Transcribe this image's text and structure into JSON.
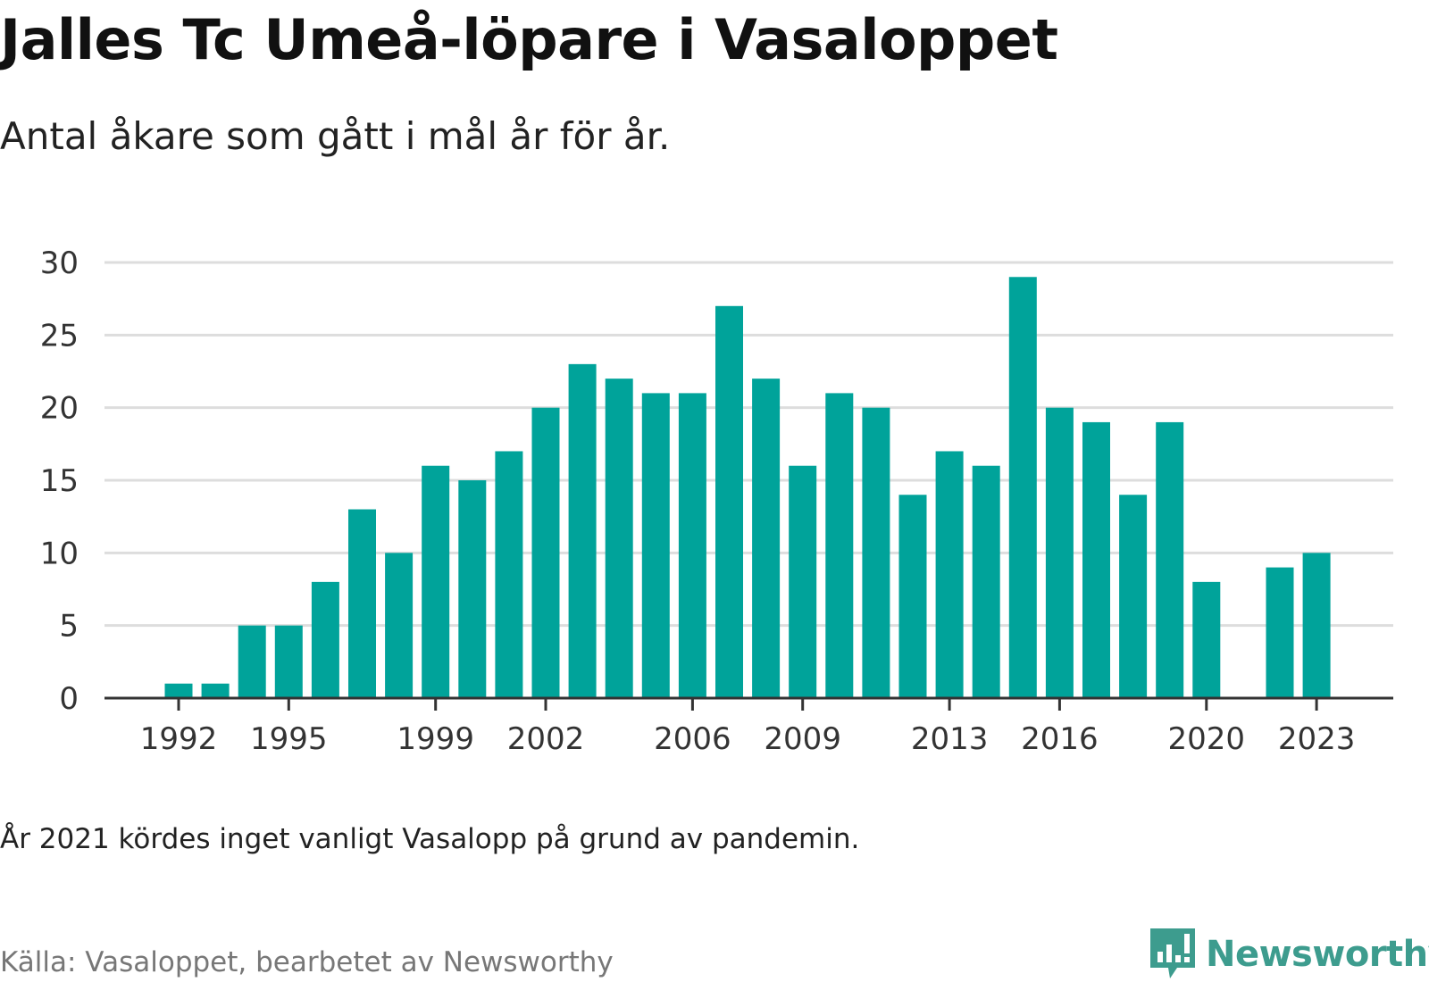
{
  "chart_data": {
    "type": "bar",
    "title": "Jalles Tc Umeå-löpare i Vasaloppet",
    "subtitle": "Antal åkare som gått i mål år för år.",
    "x": [
      1991,
      1992,
      1993,
      1994,
      1995,
      1996,
      1997,
      1998,
      1999,
      2000,
      2001,
      2002,
      2003,
      2004,
      2005,
      2006,
      2007,
      2008,
      2009,
      2010,
      2011,
      2012,
      2013,
      2014,
      2015,
      2016,
      2017,
      2018,
      2019,
      2020,
      2021,
      2022,
      2023
    ],
    "values": [
      0,
      1,
      1,
      5,
      5,
      8,
      13,
      10,
      16,
      15,
      17,
      20,
      23,
      22,
      21,
      21,
      27,
      22,
      16,
      21,
      20,
      14,
      17,
      16,
      29,
      20,
      19,
      14,
      19,
      8,
      null,
      9,
      10
    ],
    "x_tick_labels": [
      "1992",
      "1995",
      "1999",
      "2002",
      "2006",
      "2009",
      "2013",
      "2016",
      "2020",
      "2023"
    ],
    "y_ticks": [
      0,
      5,
      10,
      15,
      20,
      25,
      30
    ],
    "ylim": [
      0,
      30
    ],
    "xlabel": "",
    "ylabel": "",
    "grid": true,
    "bar_color": "#00a39a"
  },
  "note": "År 2021 kördes inget vanligt Vasalopp på grund av pandemin.",
  "source": "Källa: Vasaloppet, bearbetet av Newsworthy",
  "logo": {
    "text": "Newsworthy",
    "icon": "newsworthy-logo-icon",
    "color": "#3d9c8e"
  }
}
